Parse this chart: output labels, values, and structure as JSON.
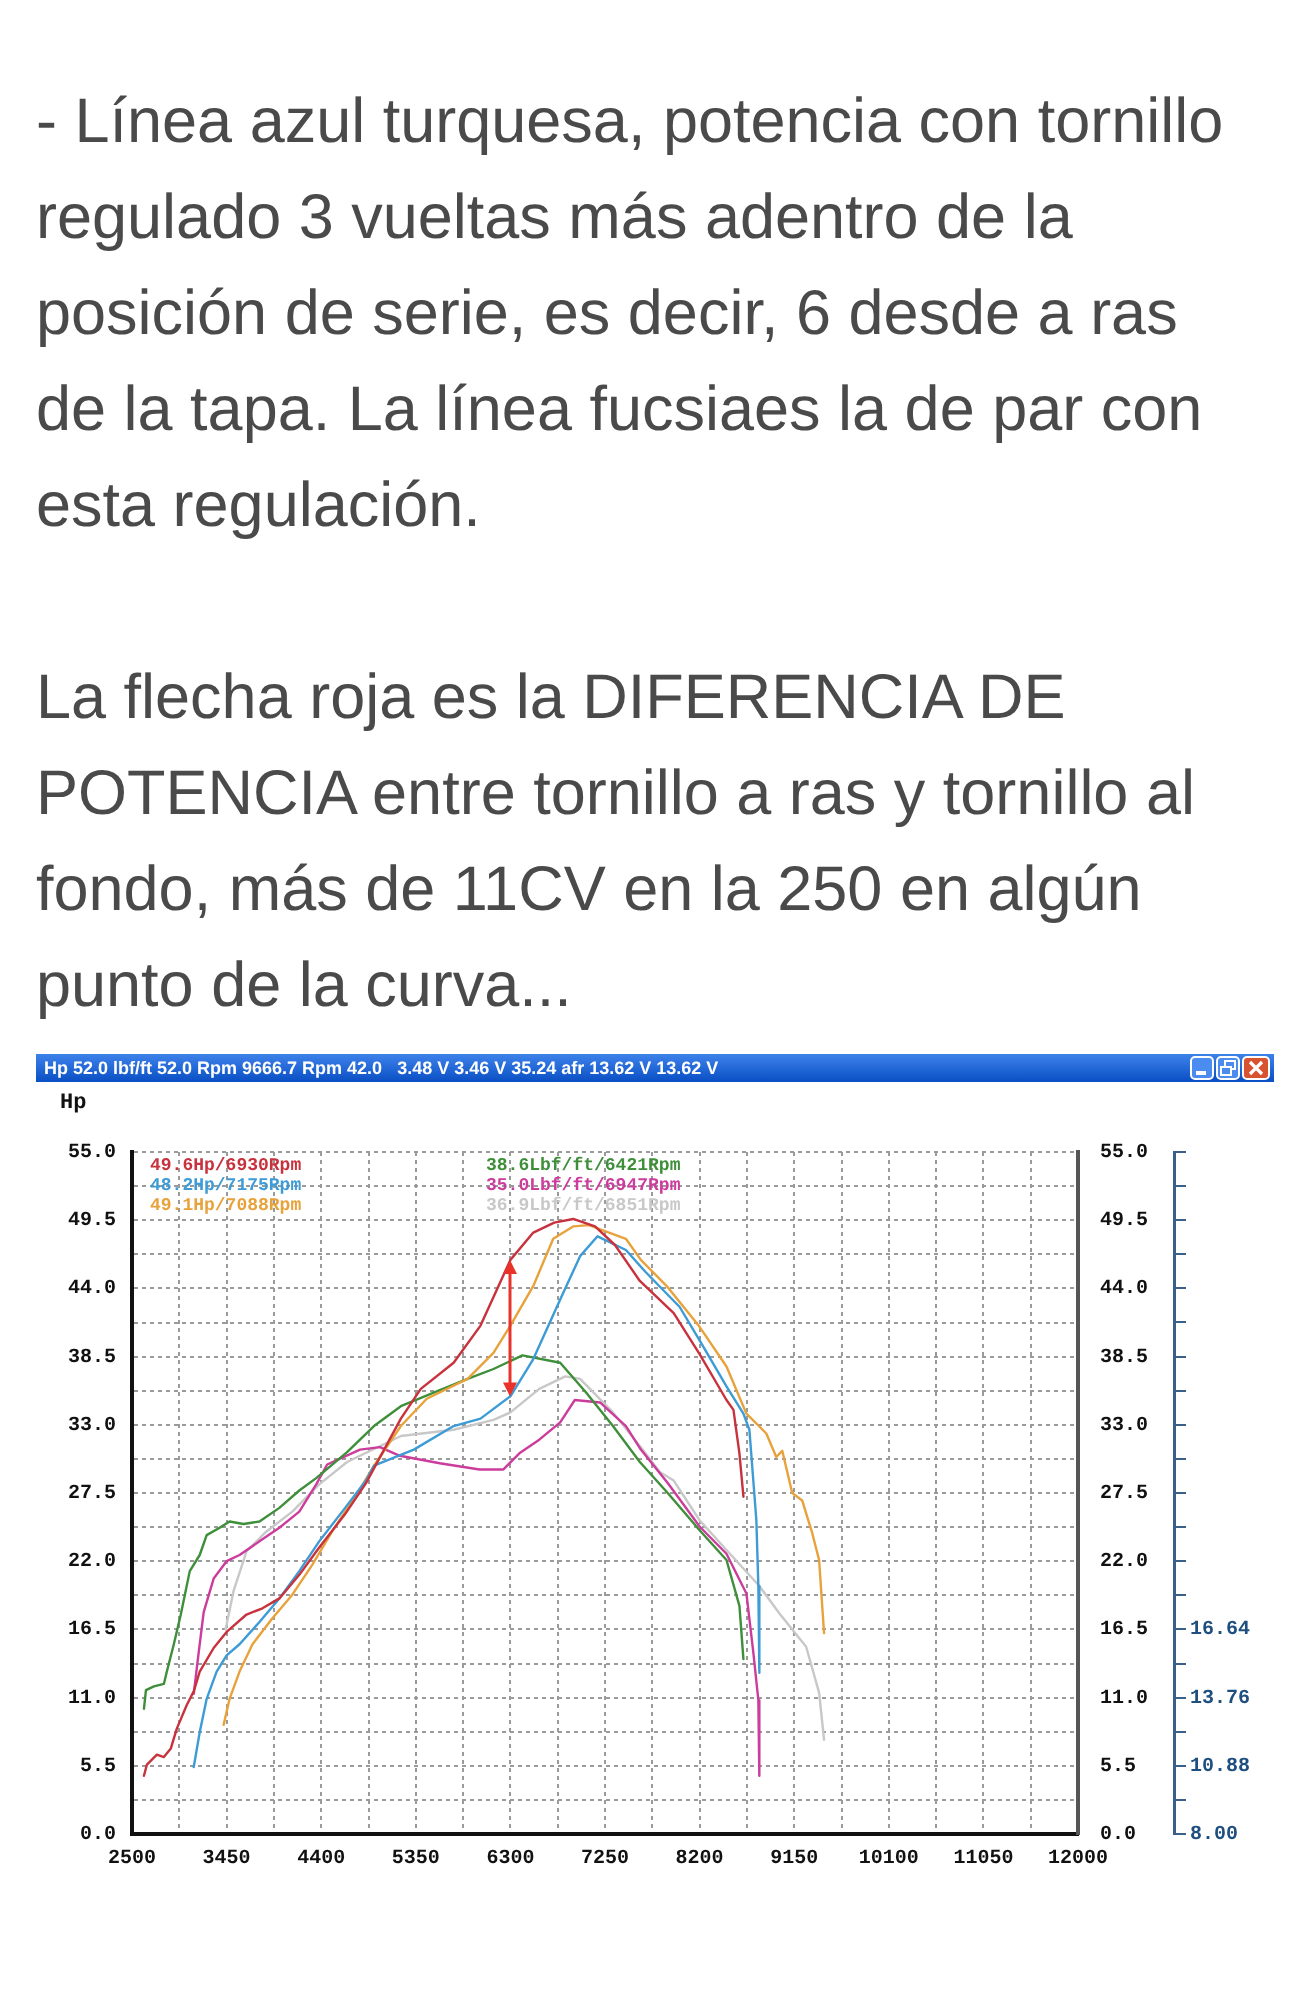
{
  "chart_data": {
    "type": "line",
    "title": "Hp 52.0 lbf/ft 52.0 Rpm 9666.7 Rpm 42.0   3.48 V 3.46 V 35.24 afr 13.62 V 13.62 V",
    "annotations": [
      "- Línea azul turquesa, potencia con tornillo regulado 3 vueltas más adentro de la posición de serie, es decir, 6 desde a ras de la tapa. La línea fucsiaes la de par con esta regulación.",
      "La flecha roja es la DIFERENCIA DE POTENCIA entre tornillo a ras y tornillo al fondo, más de 11CV en la 250 en algún punto de la curva..."
    ],
    "ylabel": "Hp",
    "xlim": [
      2500,
      12000
    ],
    "xticks": [
      2500,
      {
        "value": 2975,
        "label": null
      },
      3450,
      {
        "value": 3925,
        "label": null
      },
      4400,
      {
        "value": 4875,
        "label": null
      },
      5350,
      {
        "value": 5825,
        "label": null
      },
      6300,
      {
        "value": 6775,
        "label": null
      },
      7250,
      {
        "value": 7725,
        "label": null
      },
      8200,
      {
        "value": 8675,
        "label": null
      },
      9150,
      {
        "value": 9625,
        "label": null
      },
      10100,
      {
        "value": 10575,
        "label": null
      },
      11050,
      {
        "value": 11525,
        "label": null
      },
      12000
    ],
    "ylim": [
      0,
      55
    ],
    "yticks": [
      {
        "value": 0,
        "label": "0.0"
      },
      {
        "value": 2.75,
        "label": null
      },
      5.5,
      {
        "value": 8.25,
        "label": null
      },
      {
        "value": 11,
        "label": "11.0"
      },
      {
        "value": 13.75,
        "label": null
      },
      16.5,
      {
        "value": 19.25,
        "label": null
      },
      {
        "value": 22,
        "label": "22.0"
      },
      {
        "value": 24.75,
        "label": null
      },
      27.5,
      {
        "value": 30.25,
        "label": null
      },
      {
        "value": 33,
        "label": "33.0"
      },
      {
        "value": 35.75,
        "label": null
      },
      38.5,
      {
        "value": 41.25,
        "label": null
      },
      {
        "value": 44,
        "label": "44.0"
      },
      {
        "value": 46.75,
        "label": null
      },
      49.5,
      {
        "value": 52.25,
        "label": null
      },
      {
        "value": 55,
        "label": "55.0"
      }
    ],
    "y2lim": [
      0,
      55
    ],
    "y2ticks": [
      {
        "value": 0,
        "label": "0.0"
      },
      5.5,
      {
        "value": 11,
        "label": "11.0"
      },
      16.5,
      {
        "value": 22,
        "label": "22.0"
      },
      27.5,
      {
        "value": 33,
        "label": "33.0"
      },
      38.5,
      {
        "value": 44,
        "label": "44.0"
      },
      49.5,
      {
        "value": 55,
        "label": "55.0"
      }
    ],
    "y3lim": [
      8,
      36.8
    ],
    "y3ticks": [
      {
        "value": 8,
        "label": "8.00"
      },
      {
        "value": 9.44,
        "label": null
      },
      10.88,
      {
        "value": 12.32,
        "label": null
      },
      13.76,
      {
        "value": 15.2,
        "label": null
      },
      16.64,
      {
        "value": 18.08,
        "label": null
      },
      {
        "value": 19.52,
        "label": null
      },
      {
        "value": 20.96,
        "label": null
      },
      {
        "value": 22.4,
        "label": null
      },
      {
        "value": 23.84,
        "label": null
      },
      {
        "value": 25.28,
        "label": null
      },
      {
        "value": 26.72,
        "label": null
      },
      {
        "value": 28.16,
        "label": null
      },
      {
        "value": 29.6,
        "label": null
      },
      {
        "value": 31.04,
        "label": null
      },
      {
        "value": 32.48,
        "label": null
      },
      {
        "value": 33.92,
        "label": null
      },
      {
        "value": 35.36,
        "label": null
      },
      {
        "value": 36.8,
        "label": null
      }
    ],
    "grid": true,
    "legend": "top left",
    "series": [
      {
        "name": "49.6Hp/6930Rpm",
        "color": "#c8323c",
        "x": [
          2620,
          2650,
          2750,
          2820,
          2890,
          2950,
          3050,
          3120,
          3180,
          3320,
          3450,
          3650,
          3810,
          3980,
          4180,
          4380,
          4640,
          4850,
          5200,
          5400,
          5730,
          6000,
          6300,
          6530,
          6740,
          6930,
          7150,
          7350,
          7600,
          7940,
          8200,
          8470,
          8540,
          8600,
          8640
        ],
        "values": [
          4.7,
          5.6,
          6.4,
          6.2,
          6.9,
          8.5,
          10.4,
          11.5,
          13.1,
          15.0,
          16.3,
          17.7,
          18.2,
          19.0,
          20.9,
          23.1,
          25.8,
          28.3,
          33.5,
          35.9,
          38.0,
          41.0,
          46.3,
          48.5,
          49.3,
          49.6,
          49.0,
          47.5,
          44.6,
          42.0,
          38.7,
          35.0,
          34.2,
          30.7,
          27.2
        ]
      },
      {
        "name": "48.2Hp/7175Rpm",
        "color": "#3d9bd6",
        "x": [
          3120,
          3180,
          3250,
          3350,
          3450,
          3580,
          3780,
          3980,
          4180,
          4380,
          4640,
          4850,
          4930,
          5330,
          5730,
          6000,
          6300,
          6530,
          6800,
          7000,
          7175,
          7460,
          7660,
          8000,
          8200,
          8470,
          8640,
          8700,
          8770,
          8790,
          8800
        ],
        "values": [
          5.4,
          8.2,
          10.9,
          13.1,
          14.4,
          15.3,
          17.1,
          19.0,
          21.2,
          23.6,
          26.3,
          28.5,
          29.7,
          31.0,
          32.9,
          33.5,
          35.3,
          38.3,
          43.1,
          46.6,
          48.2,
          47.1,
          45.3,
          42.5,
          39.8,
          36.1,
          33.9,
          32.6,
          25.3,
          20.0,
          13.0
        ]
      },
      {
        "name": "49.1Hp/7088Rpm",
        "color": "#e8a23c",
        "x": [
          3420,
          3480,
          3580,
          3710,
          3910,
          4110,
          4310,
          4510,
          4780,
          4930,
          5200,
          5460,
          5870,
          6130,
          6300,
          6530,
          6730,
          6930,
          7088,
          7460,
          7610,
          7880,
          8200,
          8470,
          8670,
          8870,
          8970,
          9030,
          9130,
          9230,
          9330,
          9400,
          9450
        ],
        "values": [
          8.8,
          10.9,
          13.1,
          15.3,
          17.4,
          19.3,
          21.7,
          24.4,
          27.7,
          29.7,
          32.9,
          35.1,
          36.7,
          38.8,
          41.0,
          44.2,
          48.0,
          49.0,
          49.1,
          48.0,
          46.3,
          44.1,
          40.9,
          37.7,
          33.9,
          32.3,
          30.4,
          30.9,
          27.5,
          26.9,
          24.3,
          22.1,
          16.2
        ]
      },
      {
        "name": "38.6Lbf/ft/6421Rpm",
        "color": "#3f8f3a",
        "x": [
          2620,
          2640,
          2720,
          2820,
          2850,
          2920,
          2990,
          3080,
          3180,
          3250,
          3380,
          3480,
          3620,
          3780,
          3980,
          4180,
          4350,
          4660,
          4930,
          5200,
          5530,
          5870,
          6130,
          6421,
          6800,
          7060,
          7330,
          7600,
          7880,
          8200,
          8470,
          8600,
          8640
        ],
        "values": [
          10.1,
          11.6,
          11.9,
          12.1,
          13.1,
          15.3,
          17.7,
          21.2,
          22.5,
          24.1,
          24.7,
          25.2,
          25.0,
          25.2,
          26.3,
          27.7,
          28.7,
          30.8,
          32.9,
          34.5,
          35.6,
          36.7,
          37.5,
          38.6,
          38.0,
          35.6,
          32.9,
          30.0,
          27.5,
          24.5,
          22.1,
          18.4,
          14.1
        ]
      },
      {
        "name": "35.0Lbf/ft/6947Rpm",
        "color": "#cc3c9c",
        "x": [
          3120,
          3160,
          3220,
          3320,
          3450,
          3580,
          3780,
          3980,
          4180,
          4350,
          4460,
          4790,
          4990,
          5190,
          5590,
          5990,
          6230,
          6390,
          6590,
          6800,
          6947,
          7200,
          7460,
          7610,
          7880,
          8200,
          8470,
          8670,
          8740,
          8790,
          8800
        ],
        "values": [
          11.3,
          14.0,
          17.9,
          20.6,
          22.0,
          22.5,
          23.6,
          24.7,
          26.0,
          28.2,
          29.8,
          31.0,
          31.2,
          30.5,
          29.9,
          29.4,
          29.4,
          30.7,
          31.8,
          33.2,
          35.0,
          34.8,
          32.9,
          31.0,
          28.3,
          24.8,
          22.6,
          19.4,
          14.6,
          10.8,
          4.7
        ]
      },
      {
        "name": "36.9Lbf/ft/6851Rpm",
        "color": "#c8c8c8",
        "x": [
          3440,
          3520,
          3650,
          3850,
          4110,
          4380,
          4660,
          5200,
          5730,
          6130,
          6300,
          6590,
          6851,
          7000,
          7330,
          7600,
          7800,
          7940,
          8200,
          8470,
          8800,
          9000,
          9270,
          9400,
          9450
        ],
        "values": [
          16.5,
          19.6,
          22.8,
          24.4,
          26.0,
          28.2,
          30.0,
          32.1,
          32.6,
          33.4,
          34.0,
          35.9,
          36.9,
          36.7,
          34.0,
          31.3,
          29.2,
          28.5,
          25.3,
          22.9,
          20.0,
          17.8,
          15.1,
          11.4,
          7.6
        ]
      }
    ]
  }
}
